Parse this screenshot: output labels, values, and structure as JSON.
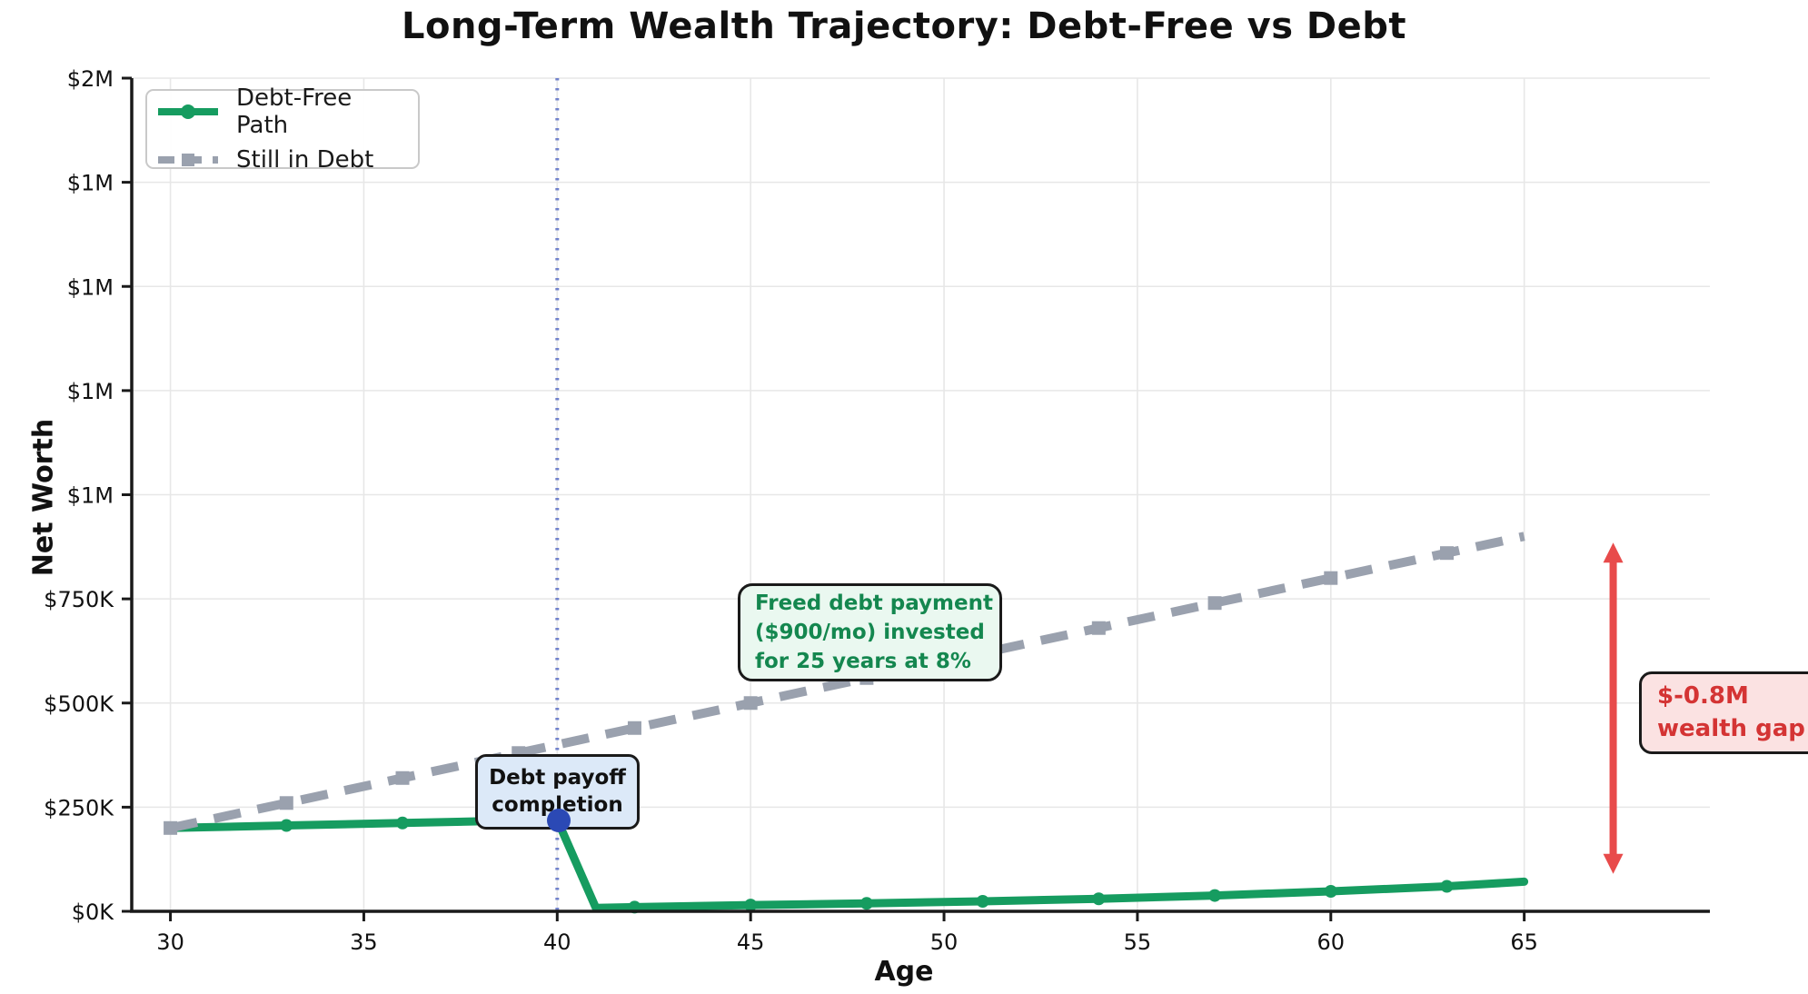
{
  "chart_data": {
    "type": "line",
    "title": "Long-Term Wealth Trajectory: Debt-Free vs Debt",
    "xlabel": "Age",
    "ylabel": "Net Worth",
    "xlim": [
      29.0,
      69.8
    ],
    "ylim": [
      0,
      2000000
    ],
    "x_ticks": [
      30,
      35,
      40,
      45,
      50,
      55,
      60,
      65
    ],
    "y_ticks": [
      0,
      250000,
      500000,
      750000,
      1000000,
      1250000,
      1500000,
      1750000,
      2000000
    ],
    "y_tick_labels": [
      "$0K",
      "$250K",
      "$500K",
      "$750K",
      "$1M",
      "$1M",
      "$1M",
      "$1M",
      "$2M"
    ],
    "grid": true,
    "legend_position": "upper left",
    "series": [
      {
        "name": "Debt-Free Path",
        "color": "#169c60",
        "style": "solid",
        "marker": "circle",
        "x": [
          30,
          33,
          36,
          39,
          40,
          41,
          42,
          45,
          48,
          51,
          54,
          57,
          60,
          63,
          65
        ],
        "y": [
          200000,
          206000,
          212000,
          218000,
          220000,
          8000,
          10000,
          15000,
          19000,
          24000,
          30000,
          38000,
          48000,
          60000,
          71000
        ],
        "marker_x": [
          30,
          33,
          36,
          39,
          42,
          45,
          48,
          51,
          54,
          57,
          60,
          63
        ]
      },
      {
        "name": "Still in Debt",
        "color": "#9aa1ae",
        "style": "dashed",
        "marker": "square",
        "x": [
          30,
          33,
          36,
          39,
          42,
          45,
          48,
          51,
          54,
          57,
          60,
          63,
          65
        ],
        "y": [
          200000,
          260000,
          320000,
          380000,
          440000,
          500000,
          560000,
          620000,
          680000,
          740000,
          800000,
          860000,
          900000
        ],
        "marker_x": [
          30,
          33,
          36,
          39,
          42,
          45,
          48,
          51,
          54,
          57,
          60,
          63
        ]
      }
    ],
    "event_line": {
      "x": 40,
      "color": "#7283cb"
    },
    "event_point": {
      "x": 40,
      "y": 220000,
      "color": "#2b49b5"
    },
    "gap_arrow": {
      "x": 67.3,
      "y_top": 885000,
      "y_bottom": 90000,
      "color": "#e84b4b"
    },
    "grid_color": "#e7e7e7",
    "spine_color": "#1a1a1a",
    "tick_label_color": "#111111"
  },
  "annotations": {
    "payoff": {
      "line1": "Debt payoff",
      "line2": "completion"
    },
    "freed": {
      "line1": "Freed debt payment",
      "line2": "($900/mo) invested",
      "line3": "for 25 years at 8%"
    },
    "gap": {
      "line1": "$-0.8M",
      "line2": "wealth gap"
    }
  }
}
